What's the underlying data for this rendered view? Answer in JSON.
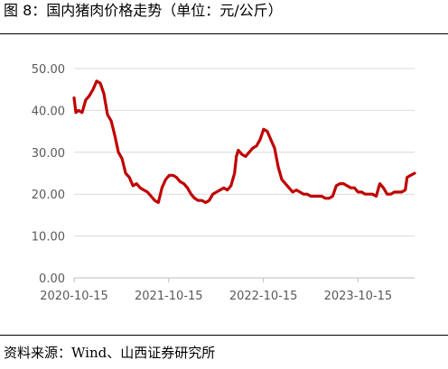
{
  "figure": {
    "title": "图 8：国内猪肉价格走势（单位：元/公斤）",
    "source": "资料来源：Wind、山西证券研究所"
  },
  "colors": {
    "series": "#c00000",
    "grid": "#d9d9d9",
    "tick_text": "#595959"
  },
  "chart_data": {
    "type": "line",
    "title": "",
    "xlabel": "",
    "ylabel": "",
    "ylim": [
      0,
      50
    ],
    "yticks": [
      "0.00",
      "10.00",
      "20.00",
      "30.00",
      "40.00",
      "50.00"
    ],
    "xticks": [
      "2020-10-15",
      "2021-10-15",
      "2022-10-15",
      "2023-10-15"
    ],
    "xlim": [
      "2020-10-15",
      "2024-05-20"
    ],
    "grid": "horizontal",
    "legend": "none",
    "series": [
      {
        "name": "",
        "color": "#c00000",
        "points": [
          [
            "2020-10-15",
            43.0
          ],
          [
            "2020-10-22",
            39.5
          ],
          [
            "2020-11-01",
            40.0
          ],
          [
            "2020-11-15",
            39.5
          ],
          [
            "2020-11-29",
            42.5
          ],
          [
            "2020-12-13",
            43.5
          ],
          [
            "2020-12-27",
            45.0
          ],
          [
            "2021-01-10",
            47.0
          ],
          [
            "2021-01-24",
            46.5
          ],
          [
            "2021-02-07",
            44.0
          ],
          [
            "2021-02-21",
            39.0
          ],
          [
            "2021-03-07",
            37.5
          ],
          [
            "2021-03-21",
            34.0
          ],
          [
            "2021-04-04",
            30.0
          ],
          [
            "2021-04-18",
            28.5
          ],
          [
            "2021-05-02",
            25.0
          ],
          [
            "2021-05-16",
            24.0
          ],
          [
            "2021-05-30",
            22.0
          ],
          [
            "2021-06-13",
            22.5
          ],
          [
            "2021-06-27",
            21.5
          ],
          [
            "2021-07-11",
            21.0
          ],
          [
            "2021-07-25",
            20.5
          ],
          [
            "2021-08-08",
            19.5
          ],
          [
            "2021-08-22",
            18.5
          ],
          [
            "2021-09-05",
            18.0
          ],
          [
            "2021-09-19",
            21.5
          ],
          [
            "2021-10-03",
            23.5
          ],
          [
            "2021-10-17",
            24.5
          ],
          [
            "2021-10-31",
            24.5
          ],
          [
            "2021-11-14",
            24.0
          ],
          [
            "2021-11-28",
            23.0
          ],
          [
            "2021-12-12",
            22.5
          ],
          [
            "2021-12-26",
            21.5
          ],
          [
            "2022-01-09",
            20.0
          ],
          [
            "2022-01-23",
            19.0
          ],
          [
            "2022-02-06",
            18.5
          ],
          [
            "2022-02-20",
            18.5
          ],
          [
            "2022-03-06",
            18.0
          ],
          [
            "2022-03-20",
            18.5
          ],
          [
            "2022-04-03",
            20.0
          ],
          [
            "2022-04-17",
            20.5
          ],
          [
            "2022-05-01",
            21.0
          ],
          [
            "2022-05-15",
            21.5
          ],
          [
            "2022-05-29",
            21.0
          ],
          [
            "2022-06-12",
            22.0
          ],
          [
            "2022-06-26",
            25.0
          ],
          [
            "2022-07-03",
            29.0
          ],
          [
            "2022-07-10",
            30.5
          ],
          [
            "2022-07-24",
            29.5
          ],
          [
            "2022-08-07",
            29.0
          ],
          [
            "2022-08-21",
            30.0
          ],
          [
            "2022-09-04",
            31.0
          ],
          [
            "2022-09-18",
            31.5
          ],
          [
            "2022-10-02",
            33.0
          ],
          [
            "2022-10-16",
            35.5
          ],
          [
            "2022-10-30",
            35.0
          ],
          [
            "2022-11-13",
            33.0
          ],
          [
            "2022-11-27",
            31.0
          ],
          [
            "2022-12-11",
            26.5
          ],
          [
            "2022-12-25",
            23.5
          ],
          [
            "2023-01-08",
            22.5
          ],
          [
            "2023-01-22",
            21.5
          ],
          [
            "2023-02-05",
            20.5
          ],
          [
            "2023-02-19",
            21.0
          ],
          [
            "2023-03-05",
            20.5
          ],
          [
            "2023-03-19",
            20.0
          ],
          [
            "2023-04-02",
            20.0
          ],
          [
            "2023-04-16",
            19.5
          ],
          [
            "2023-04-30",
            19.5
          ],
          [
            "2023-05-14",
            19.5
          ],
          [
            "2023-05-28",
            19.5
          ],
          [
            "2023-06-11",
            19.0
          ],
          [
            "2023-06-25",
            19.0
          ],
          [
            "2023-07-09",
            19.5
          ],
          [
            "2023-07-23",
            22.0
          ],
          [
            "2023-08-06",
            22.5
          ],
          [
            "2023-08-20",
            22.5
          ],
          [
            "2023-09-03",
            22.0
          ],
          [
            "2023-09-17",
            21.5
          ],
          [
            "2023-10-01",
            21.5
          ],
          [
            "2023-10-15",
            20.5
          ],
          [
            "2023-10-29",
            20.5
          ],
          [
            "2023-11-12",
            20.0
          ],
          [
            "2023-11-26",
            20.0
          ],
          [
            "2023-12-10",
            20.0
          ],
          [
            "2023-12-24",
            19.5
          ],
          [
            "2024-01-07",
            22.5
          ],
          [
            "2024-01-21",
            21.5
          ],
          [
            "2024-02-04",
            20.0
          ],
          [
            "2024-02-18",
            20.0
          ],
          [
            "2024-03-03",
            20.5
          ],
          [
            "2024-03-17",
            20.5
          ],
          [
            "2024-03-31",
            20.5
          ],
          [
            "2024-04-14",
            21.0
          ],
          [
            "2024-04-21",
            24.0
          ],
          [
            "2024-05-05",
            24.5
          ],
          [
            "2024-05-20",
            25.0
          ]
        ]
      }
    ]
  }
}
